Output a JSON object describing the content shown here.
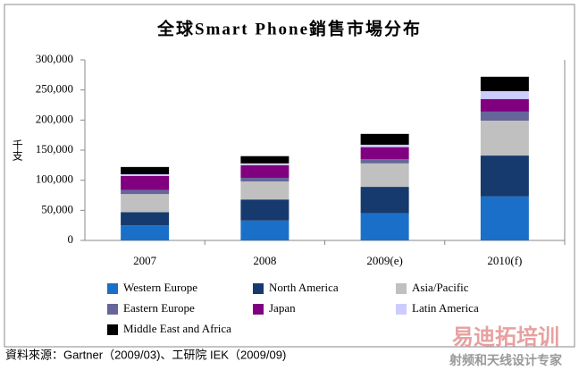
{
  "chart_data": {
    "type": "stacked_bar",
    "title": "全球Smart Phone銷售市場分布",
    "y_label": "千支",
    "categories": [
      "2007",
      "2008",
      "2009(e)",
      "2010(f)"
    ],
    "series": [
      {
        "name": "Western Europe",
        "color": "#1a70c8",
        "values": [
          25000,
          33000,
          45000,
          73000
        ]
      },
      {
        "name": "North America",
        "color": "#163a6e",
        "values": [
          22000,
          35000,
          44000,
          68000
        ]
      },
      {
        "name": "Asia/Pacific",
        "color": "#c0c0c0",
        "values": [
          30000,
          30000,
          39000,
          58000
        ]
      },
      {
        "name": "Eastern Europe",
        "color": "#66669a",
        "values": [
          7000,
          6000,
          7000,
          15000
        ]
      },
      {
        "name": "Japan",
        "color": "#800080",
        "values": [
          23000,
          21000,
          20000,
          21000
        ]
      },
      {
        "name": "Latin America",
        "color": "#ccccff",
        "values": [
          3000,
          3000,
          4000,
          13000
        ]
      },
      {
        "name": "Middle East and Africa",
        "color": "#000000",
        "values": [
          12000,
          12000,
          18000,
          24000
        ]
      }
    ],
    "ylim": [
      0,
      300000
    ],
    "yticks": [
      0,
      {
        "value": 50000,
        "label": "50,000"
      },
      {
        "value": 100000,
        "label": "100,000"
      },
      {
        "value": 150000,
        "label": "150,000"
      },
      {
        "value": 200000,
        "label": "200,000"
      },
      {
        "value": 250000,
        "label": "250,000"
      },
      {
        "value": 300000,
        "label": "300,000"
      }
    ],
    "grid": false,
    "source": "資料來源：Gartner（2009/03)、工研院 IEK（2009/09)",
    "watermark": [
      "易迪拓培训",
      "射频和天线设计专家"
    ]
  }
}
